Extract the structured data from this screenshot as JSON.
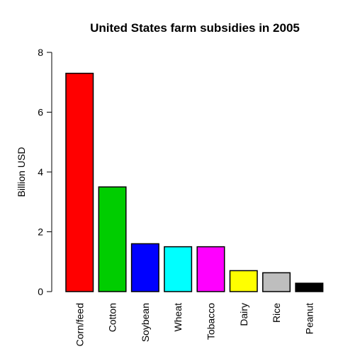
{
  "chart_data": {
    "type": "bar",
    "title": "United States farm subsidies in 2005",
    "xlabel": "",
    "ylabel": "Billion USD",
    "ylim": [
      0,
      8
    ],
    "yticks": [
      "0",
      "2",
      "4",
      "6",
      "8"
    ],
    "categories": [
      "Corn/feed",
      "Cotton",
      "Soybean",
      "Wheat",
      "Tobacco",
      "Dairy",
      "Rice",
      "Peanut"
    ],
    "values": [
      7.3,
      3.5,
      1.6,
      1.5,
      1.5,
      0.7,
      0.63,
      0.28
    ],
    "colors": [
      "#ff0000",
      "#00cd00",
      "#0000ff",
      "#00ffff",
      "#ff00ff",
      "#ffff00",
      "#bebebe",
      "#000000"
    ],
    "grid": false,
    "legend": "none"
  }
}
